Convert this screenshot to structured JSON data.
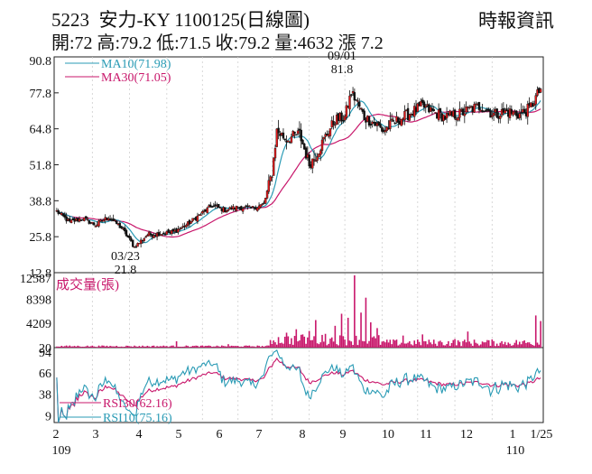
{
  "header": {
    "stock_code": "5223",
    "stock_name": "安力-KY",
    "date": "1100125",
    "chart_kind": "(日線圖)",
    "quote_line": "開:72 高:79.2 低:71.5 收:79.2 量:4632 漲 7.2",
    "brand": "時報資訊"
  },
  "chart_data": [
    {
      "type": "candlestick",
      "panel": "price",
      "ylim": [
        12.8,
        90.8
      ],
      "yticks": [
        "90.8",
        "77.8",
        "64.8",
        "51.8",
        "38.8",
        "25.8",
        "12.8"
      ],
      "legend": [
        {
          "label": "MA10(71.98)",
          "color": "#2a9bb5"
        },
        {
          "label": "MA30(71.05)",
          "color": "#c8176b"
        }
      ],
      "annotations": [
        {
          "date_label": "09/01",
          "value_label": "81.8",
          "kind": "high"
        },
        {
          "date_label": "03/23",
          "value_label": "21.8",
          "kind": "low"
        }
      ],
      "candles_anchor_closes": [
        [
          0,
          35
        ],
        [
          8,
          31
        ],
        [
          16,
          32.5
        ],
        [
          24,
          30
        ],
        [
          32,
          33
        ],
        [
          40,
          29
        ],
        [
          48,
          22
        ],
        [
          56,
          26.5
        ],
        [
          64,
          27
        ],
        [
          72,
          27.5
        ],
        [
          80,
          30
        ],
        [
          88,
          33.5
        ],
        [
          96,
          37
        ],
        [
          104,
          35.5
        ],
        [
          112,
          36.5
        ],
        [
          120,
          36
        ],
        [
          128,
          37.5
        ],
        [
          133,
          49
        ],
        [
          136,
          64
        ],
        [
          142,
          61
        ],
        [
          150,
          63
        ],
        [
          156,
          52
        ],
        [
          160,
          55
        ],
        [
          166,
          62
        ],
        [
          172,
          68
        ],
        [
          178,
          69
        ],
        [
          182,
          78
        ],
        [
          186,
          74
        ],
        [
          190,
          69
        ],
        [
          196,
          67
        ],
        [
          202,
          64
        ],
        [
          208,
          67
        ],
        [
          214,
          69
        ],
        [
          220,
          71
        ],
        [
          226,
          73
        ],
        [
          232,
          71
        ],
        [
          240,
          69
        ],
        [
          248,
          70
        ],
        [
          256,
          72
        ],
        [
          262,
          73
        ],
        [
          270,
          70
        ],
        [
          278,
          71
        ],
        [
          286,
          70
        ],
        [
          292,
          72
        ],
        [
          299,
          79.2
        ]
      ]
    },
    {
      "type": "bar",
      "panel": "volume",
      "title": "成交量(張)",
      "ylim": [
        0,
        12587
      ],
      "yticks": [
        "12587",
        "8398",
        "4209",
        "20"
      ],
      "bar_color": "#c8176b",
      "spikes": [
        [
          74,
          1100
        ],
        [
          106,
          600
        ],
        [
          142,
          2600
        ],
        [
          148,
          3200
        ],
        [
          152,
          2300
        ],
        [
          156,
          2900
        ],
        [
          160,
          4800
        ],
        [
          166,
          2400
        ],
        [
          172,
          3800
        ],
        [
          176,
          5900
        ],
        [
          180,
          5200
        ],
        [
          184,
          12587
        ],
        [
          188,
          6100
        ],
        [
          191,
          8700
        ],
        [
          194,
          4400
        ],
        [
          198,
          3400
        ],
        [
          214,
          2100
        ],
        [
          226,
          2300
        ],
        [
          246,
          1500
        ],
        [
          254,
          2800
        ],
        [
          276,
          600
        ],
        [
          296,
          5600
        ],
        [
          299,
          4632
        ]
      ]
    },
    {
      "type": "line",
      "panel": "rsi",
      "ylim": [
        0,
        100
      ],
      "yticks": [
        "94",
        "66",
        "38",
        "9"
      ],
      "series": [
        {
          "name": "RSI30(62.16)",
          "color": "#c8176b"
        },
        {
          "name": "RSI10(75.16)",
          "color": "#2a9bb5"
        }
      ]
    }
  ],
  "x_axis": {
    "month_labels": [
      "2",
      "3",
      "4",
      "5",
      "6",
      "7",
      "8",
      "9",
      "10",
      "11",
      "12",
      "1",
      "1/25"
    ],
    "year_labels": [
      "109",
      "110"
    ]
  }
}
